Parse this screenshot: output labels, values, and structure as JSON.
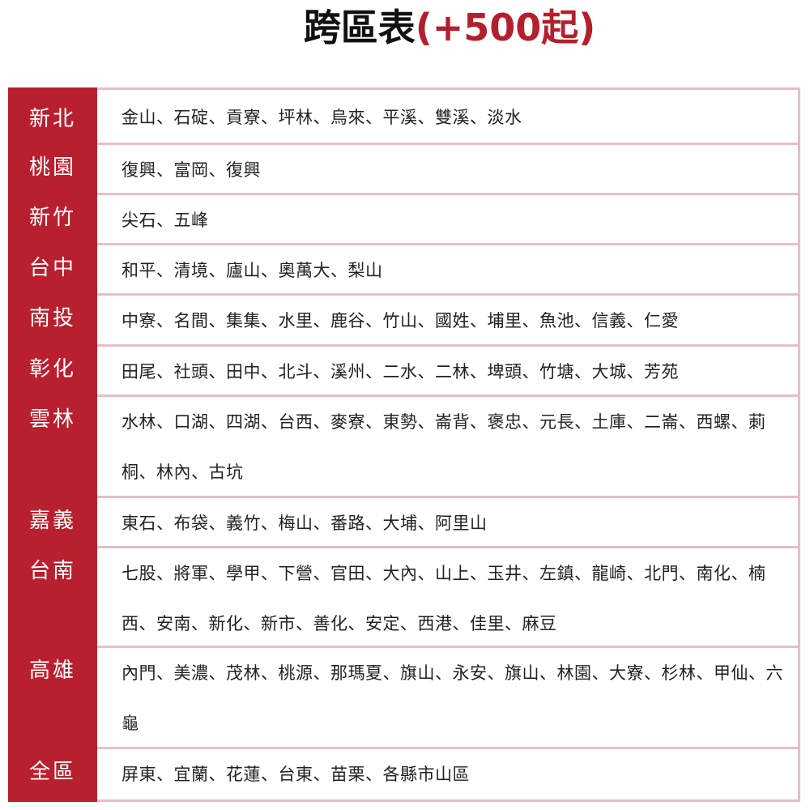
{
  "title": {
    "main": "跨區表",
    "sub": "(+500起)"
  },
  "colors": {
    "accent": "#b8202f",
    "divider": "#e6bfc6"
  },
  "rows": [
    {
      "region": "新北",
      "areas": "金山、石碇、貢寮、坪林、烏來、平溪、雙溪、淡水"
    },
    {
      "region": "桃園",
      "areas": "復興、富岡、復興"
    },
    {
      "region": "新竹",
      "areas": "尖石、五峰"
    },
    {
      "region": "台中",
      "areas": "和平、清境、廬山、奧萬大、梨山"
    },
    {
      "region": "南投",
      "areas": "中寮、名間、集集、水里、鹿谷、竹山、國姓、埔里、魚池、信義、仁愛"
    },
    {
      "region": "彰化",
      "areas": "田尾、社頭、田中、北斗、溪州、二水、二林、埤頭、竹塘、大城、芳苑"
    },
    {
      "region": "雲林",
      "areas": "水林、口湖、四湖、台西、麥寮、東勢、崙背、褒忠、元長、土庫、二崙、西螺、莿桐、林內、古坑"
    },
    {
      "region": "嘉義",
      "areas": "東石、布袋、義竹、梅山、番路、大埔、阿里山"
    },
    {
      "region": "台南",
      "areas": "七股、將軍、學甲、下營、官田、大內、山上、玉井、左鎮、龍崎、北門、南化、楠西、安南、新化、新市、善化、安定、西港、佳里、麻豆"
    },
    {
      "region": "高雄",
      "areas": "內門、美濃、茂林、桃源、那瑪夏、旗山、永安、旗山、林園、大寮、杉林、甲仙、六龜"
    },
    {
      "region": "全區",
      "areas": "屏東、宜蘭、花蓮、台東、苗栗、各縣市山區"
    }
  ]
}
